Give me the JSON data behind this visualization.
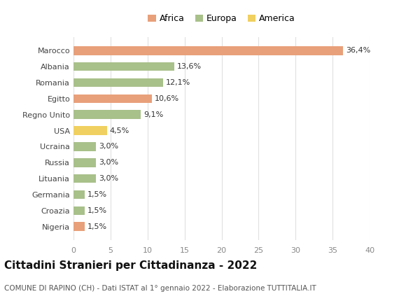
{
  "categories": [
    "Nigeria",
    "Croazia",
    "Germania",
    "Lituania",
    "Russia",
    "Ucraina",
    "USA",
    "Regno Unito",
    "Egitto",
    "Romania",
    "Albania",
    "Marocco"
  ],
  "values": [
    1.5,
    1.5,
    1.5,
    3.0,
    3.0,
    3.0,
    4.5,
    9.1,
    10.6,
    12.1,
    13.6,
    36.4
  ],
  "labels": [
    "1,5%",
    "1,5%",
    "1,5%",
    "3,0%",
    "3,0%",
    "3,0%",
    "4,5%",
    "9,1%",
    "10,6%",
    "12,1%",
    "13,6%",
    "36,4%"
  ],
  "colors": [
    "#e8a07a",
    "#a8c08a",
    "#a8c08a",
    "#a8c08a",
    "#a8c08a",
    "#a8c08a",
    "#f0d060",
    "#a8c08a",
    "#e8a07a",
    "#a8c08a",
    "#a8c08a",
    "#e8a07a"
  ],
  "legend_labels": [
    "Africa",
    "Europa",
    "America"
  ],
  "legend_colors": [
    "#e8a07a",
    "#a8c08a",
    "#f0d060"
  ],
  "title": "Cittadini Stranieri per Cittadinanza - 2022",
  "subtitle": "COMUNE DI RAPINO (CH) - Dati ISTAT al 1° gennaio 2022 - Elaborazione TUTTITALIA.IT",
  "xlim": [
    0,
    40
  ],
  "xticks": [
    0,
    5,
    10,
    15,
    20,
    25,
    30,
    35,
    40
  ],
  "background_color": "#ffffff",
  "grid_color": "#e0e0e0",
  "bar_height": 0.55,
  "title_fontsize": 11,
  "subtitle_fontsize": 7.5,
  "label_fontsize": 8,
  "tick_fontsize": 8,
  "legend_fontsize": 9
}
